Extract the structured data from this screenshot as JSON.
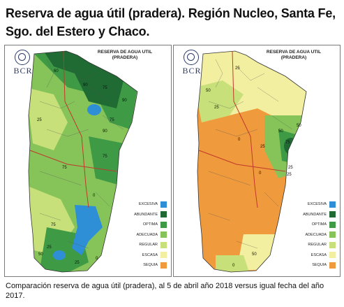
{
  "title": "Reserva de agua útil (pradera). Región Nucleo, Santa Fe, Sgo. del Estero y Chaco.",
  "caption": "Comparación reserva de agua útil (pradera), al 5 de abril año 2018 versus igual fecha del año 2017.",
  "colors": {
    "excesiva": "#2e8fd6",
    "abundante": "#1f6b33",
    "optima": "#3f9a46",
    "adecuada": "#86c45a",
    "regular": "#c7e07a",
    "escasa": "#f3efa0",
    "sequia": "#ef9a3c"
  },
  "panels": [
    {
      "id": "2018",
      "header_line1": "RESERVA DE AGUA UTIL",
      "header_line2": "(PRADERA)",
      "logo_text": "BCR",
      "contour_labels": [
        "60",
        "90",
        "75",
        "90",
        "75",
        "90",
        "25",
        "75",
        "75",
        "0",
        "75",
        "25",
        "50",
        "25",
        "0"
      ]
    },
    {
      "id": "2017",
      "header_line1": "RESERVA DE AGUA UTIL",
      "header_line2": "(PRADERA)",
      "logo_text": "BCR",
      "contour_labels": [
        "25",
        "50",
        "25",
        "50",
        "50",
        "25",
        "75",
        "25",
        "0",
        "25",
        "0",
        "0",
        "50"
      ]
    }
  ],
  "legend": [
    {
      "label": "EXCESIVA",
      "color": "#2e8fd6"
    },
    {
      "label": "ABUNDANTE",
      "color": "#1f6b33"
    },
    {
      "label": "OPTIMA",
      "color": "#3f9a46"
    },
    {
      "label": "ADECUADA",
      "color": "#86c45a"
    },
    {
      "label": "REGULAR",
      "color": "#c7e07a"
    },
    {
      "label": "ESCASA",
      "color": "#f3efa0"
    },
    {
      "label": "SEQUIA",
      "color": "#ef9a3c"
    }
  ]
}
